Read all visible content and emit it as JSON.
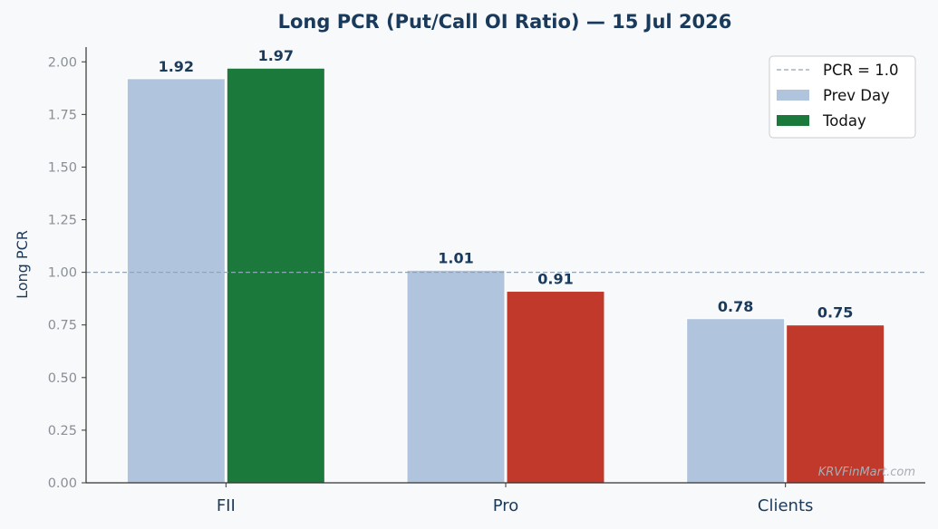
{
  "chart_data": {
    "type": "bar",
    "title": "Long PCR (Put/Call OI Ratio) — 15 Jul 2026",
    "xlabel": "",
    "ylabel": "Long PCR",
    "categories": [
      "FII",
      "Pro",
      "Clients"
    ],
    "series": [
      {
        "name": "Prev Day",
        "values": [
          1.92,
          1.01,
          0.78
        ],
        "colors": [
          "#b0c4de",
          "#b0c4de",
          "#b0c4de"
        ]
      },
      {
        "name": "Today",
        "values": [
          1.97,
          0.91,
          0.75
        ],
        "colors": [
          "#1b7a3b",
          "#c0392b",
          "#c0392b"
        ]
      }
    ],
    "data_labels": [
      [
        "1.92",
        "1.01",
        "0.78"
      ],
      [
        "1.97",
        "0.91",
        "0.75"
      ]
    ],
    "ylim": [
      0,
      2.07
    ],
    "yticks": [
      "0.00",
      "0.25",
      "0.50",
      "0.75",
      "1.00",
      "1.25",
      "1.50",
      "1.75",
      "2.00"
    ],
    "reference_line": {
      "label": "PCR = 1.0",
      "value": 1.0,
      "color": "#8fa3bb",
      "style": "dashed"
    },
    "legend": {
      "placement": "top-right",
      "entries": [
        {
          "label": "PCR = 1.0",
          "kind": "dashed-line",
          "color": "#8fa3bb"
        },
        {
          "label": "Prev Day",
          "kind": "patch",
          "color": "#b0c4de"
        },
        {
          "label": "Today",
          "kind": "patch",
          "color": "#1b7a3b"
        }
      ]
    },
    "grid": false,
    "watermark": "KRVFinMart.com"
  }
}
